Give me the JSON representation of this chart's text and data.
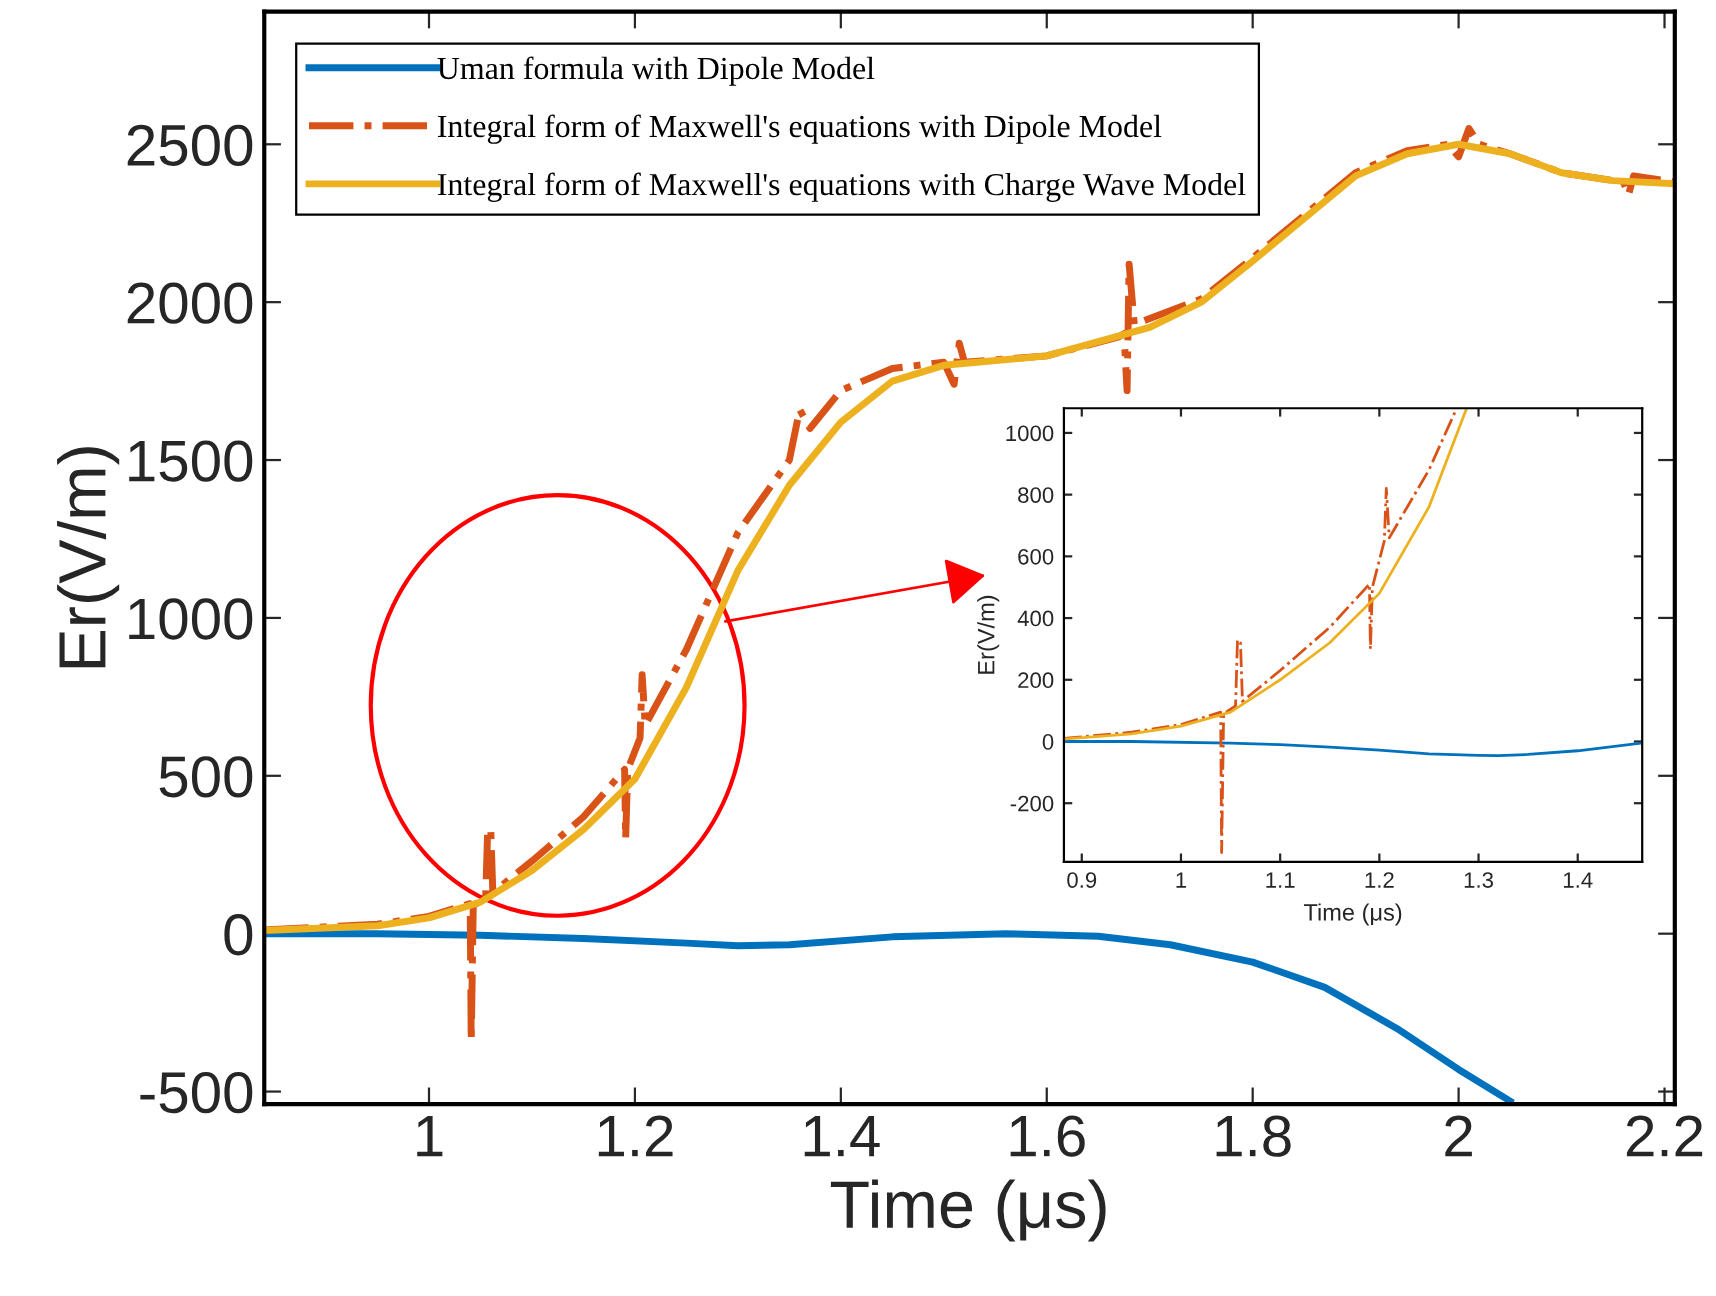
{
  "chart_data": [
    {
      "type": "line",
      "xlabel": "Time (μs)",
      "ylabel": "Er(V/m)",
      "xlim": [
        0.84,
        2.21
      ],
      "ylim": [
        -540,
        2920
      ],
      "xticks": [
        1,
        1.2,
        1.4,
        1.6,
        1.8,
        2,
        2.2
      ],
      "yticks": [
        -500,
        0,
        500,
        1000,
        1500,
        2000,
        2500
      ],
      "grid": false,
      "legend": "top left",
      "series": [
        {
          "name": "Uman formula with Dipole Model",
          "color": "#0072bd",
          "line_style": "solid",
          "x": [
            0.84,
            0.95,
            1.05,
            1.15,
            1.25,
            1.3,
            1.35,
            1.45,
            1.56,
            1.65,
            1.72,
            1.8,
            1.87,
            1.94,
            2.0,
            2.05
          ],
          "values": [
            0,
            0,
            -5,
            -15,
            -30,
            -38,
            -35,
            -10,
            0,
            -8,
            -35,
            -90,
            -170,
            -300,
            -430,
            -530
          ]
        },
        {
          "name": "Integral form of Maxwell's equations with Dipole Model",
          "color": "#d95319",
          "line_style": "dashdot",
          "x": [
            0.84,
            0.95,
            1.0,
            1.04,
            1.041,
            1.043,
            1.055,
            1.057,
            1.06,
            1.062,
            1.1,
            1.15,
            1.19,
            1.191,
            1.193,
            1.205,
            1.207,
            1.21,
            1.25,
            1.3,
            1.35,
            1.36,
            1.37,
            1.4,
            1.45,
            1.5,
            1.51,
            1.515,
            1.52,
            1.6,
            1.67,
            1.675,
            1.678,
            1.68,
            1.685,
            1.75,
            1.8,
            1.9,
            1.95,
            1.99,
            2.0,
            2.01,
            2.02,
            2.05,
            2.1,
            2.16,
            2.165,
            2.17,
            2.21
          ],
          "values": [
            12,
            30,
            55,
            95,
            -340,
            90,
            110,
            330,
            330,
            130,
            230,
            370,
            520,
            300,
            520,
            620,
            820,
            660,
            900,
            1270,
            1500,
            1660,
            1600,
            1720,
            1790,
            1810,
            1740,
            1870,
            1810,
            1830,
            1890,
            1900,
            1720,
            2120,
            1930,
            2010,
            2140,
            2410,
            2480,
            2500,
            2460,
            2550,
            2500,
            2470,
            2410,
            2380,
            2340,
            2400,
            2380
          ]
        },
        {
          "name": "Integral form of Maxwell's equations with Charge Wave Model",
          "color": "#edb120",
          "line_style": "solid",
          "x": [
            0.84,
            0.95,
            1.0,
            1.05,
            1.1,
            1.15,
            1.2,
            1.25,
            1.3,
            1.35,
            1.4,
            1.45,
            1.5,
            1.6,
            1.7,
            1.75,
            1.8,
            1.9,
            1.95,
            2.0,
            2.05,
            2.1,
            2.15,
            2.21
          ],
          "values": [
            10,
            25,
            50,
            100,
            200,
            330,
            490,
            780,
            1150,
            1420,
            1620,
            1750,
            1800,
            1830,
            1920,
            2000,
            2130,
            2400,
            2470,
            2500,
            2470,
            2410,
            2385,
            2375
          ]
        }
      ]
    },
    {
      "type": "line",
      "xlabel": "Time (μs)",
      "ylabel": "Er(V/m)",
      "xlim": [
        0.882,
        1.465
      ],
      "ylim": [
        -390,
        1080
      ],
      "xticks": [
        0.9,
        1,
        1.1,
        1.2,
        1.3,
        1.4
      ],
      "yticks": [
        -200,
        0,
        200,
        400,
        600,
        800,
        1000
      ],
      "grid": false,
      "legend": false,
      "series": [
        {
          "color": "#0072bd",
          "line_style": "solid",
          "x": [
            0.882,
            0.95,
            1.05,
            1.1,
            1.15,
            1.2,
            1.25,
            1.3,
            1.32,
            1.35,
            1.4,
            1.465
          ],
          "values": [
            0,
            0,
            -5,
            -10,
            -18,
            -28,
            -40,
            -45,
            -46,
            -42,
            -30,
            -5
          ]
        },
        {
          "color": "#d95319",
          "line_style": "dashdot",
          "x": [
            0.882,
            0.95,
            1.0,
            1.04,
            1.041,
            1.043,
            1.055,
            1.057,
            1.06,
            1.062,
            1.1,
            1.15,
            1.19,
            1.191,
            1.193,
            1.205,
            1.207,
            1.21,
            1.25,
            1.278
          ],
          "values": [
            10,
            30,
            55,
            95,
            -360,
            90,
            115,
            330,
            320,
            130,
            230,
            370,
            510,
            300,
            500,
            650,
            820,
            660,
            880,
            1080
          ]
        },
        {
          "color": "#edb120",
          "line_style": "solid",
          "x": [
            0.882,
            0.95,
            1.0,
            1.05,
            1.1,
            1.15,
            1.2,
            1.25,
            1.288
          ],
          "values": [
            8,
            25,
            50,
            95,
            200,
            320,
            480,
            760,
            1080
          ]
        }
      ]
    }
  ]
}
